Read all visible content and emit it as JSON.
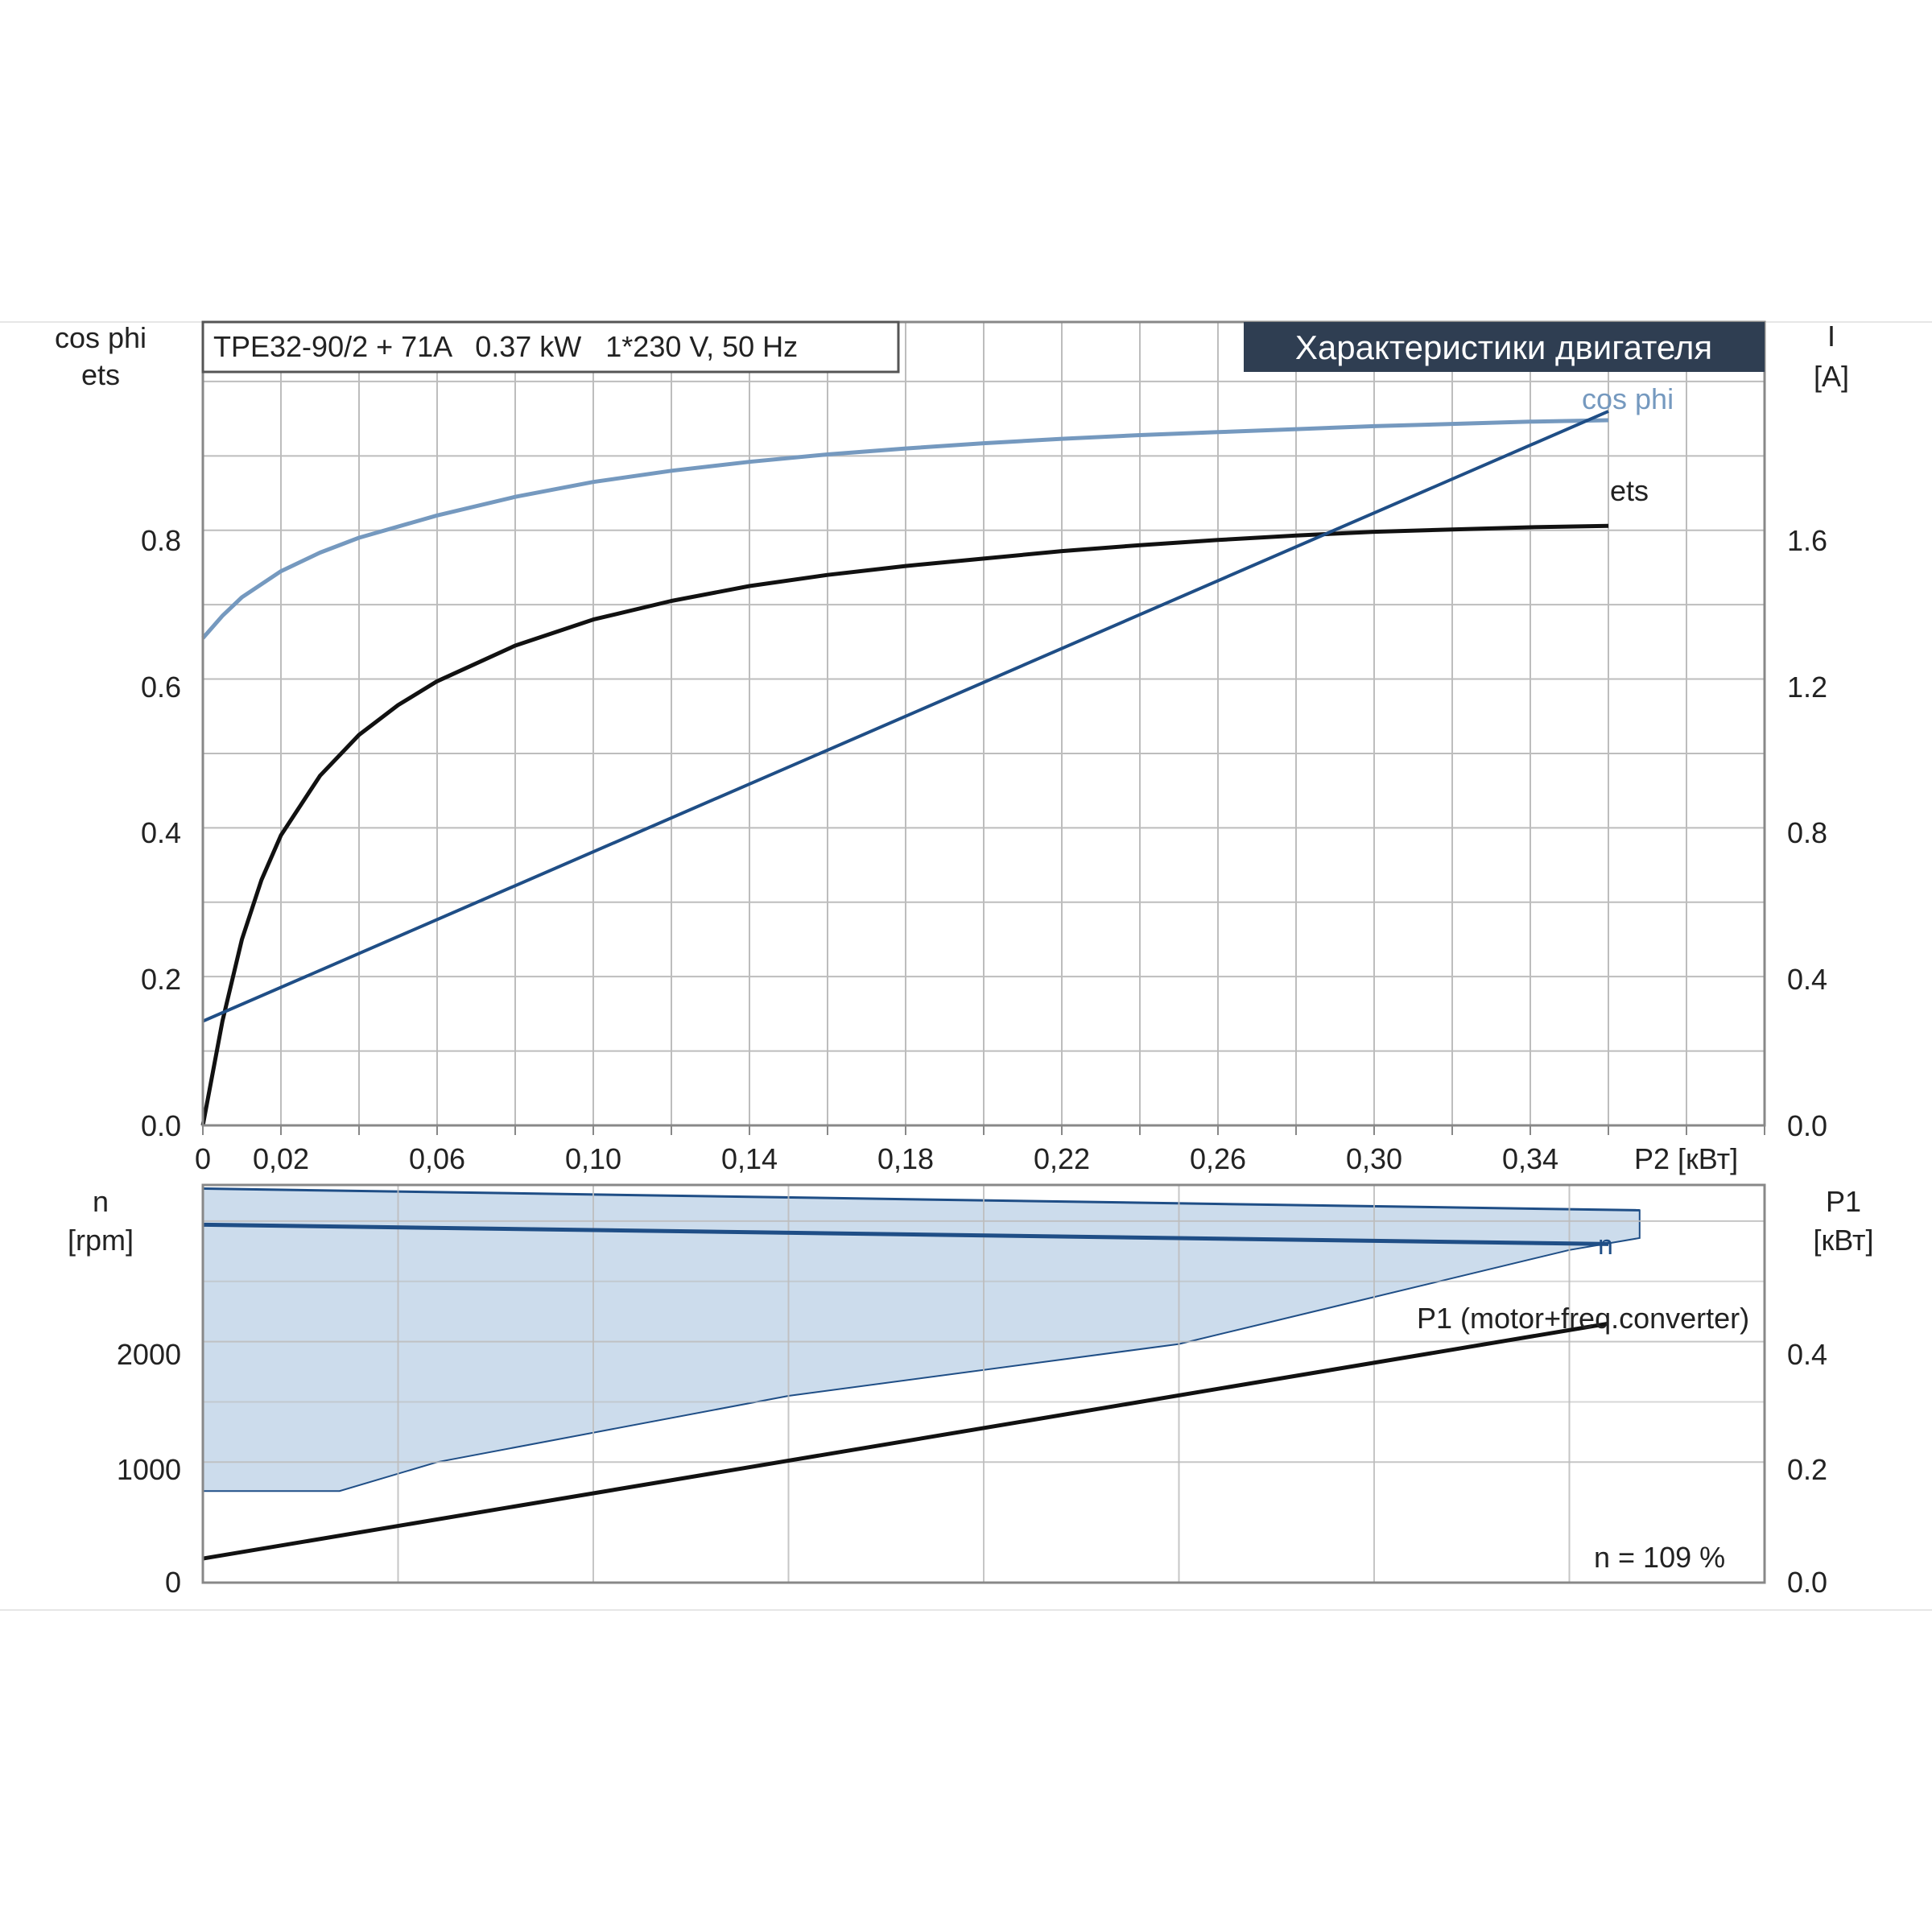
{
  "chart_data": [
    {
      "type": "line",
      "title": "Характеристики двигателя",
      "subtitle": "TPE32-90/2 + 71A   0.37 kW   1*230 V, 50 Hz",
      "xlabel": "P2 [кВт]",
      "ylabel_left": [
        "cos phi",
        "ets"
      ],
      "ylabel_right": [
        "I",
        "[A]"
      ],
      "x_ticks": [
        "0",
        "0,02",
        "0,06",
        "0,10",
        "0,14",
        "0,18",
        "0,22",
        "0,26",
        "0,30",
        "0,34"
      ],
      "y_left_ticks": [
        "0.0",
        "0.2",
        "0.4",
        "0.6",
        "0.8"
      ],
      "y_right_ticks": [
        "0.0",
        "0.4",
        "0.8",
        "1.2",
        "1.6"
      ],
      "xlim": [
        0,
        0.4
      ],
      "ylim_left": [
        0,
        1.08
      ],
      "ylim_right": [
        0,
        2.16
      ],
      "grid": true,
      "colors": {
        "cosphi": "#7599bf",
        "ets": "#111111",
        "current": "#1f4e86"
      },
      "series": [
        {
          "name": "cos phi",
          "axis": "left",
          "x": [
            0,
            0.005,
            0.01,
            0.02,
            0.03,
            0.04,
            0.06,
            0.08,
            0.1,
            0.12,
            0.14,
            0.16,
            0.18,
            0.2,
            0.22,
            0.24,
            0.26,
            0.28,
            0.3,
            0.32,
            0.34,
            0.36
          ],
          "values": [
            0.655,
            0.685,
            0.71,
            0.745,
            0.77,
            0.79,
            0.82,
            0.845,
            0.865,
            0.88,
            0.892,
            0.902,
            0.91,
            0.917,
            0.923,
            0.928,
            0.932,
            0.936,
            0.94,
            0.943,
            0.946,
            0.948
          ]
        },
        {
          "name": "ets",
          "axis": "left",
          "x": [
            0,
            0.005,
            0.01,
            0.015,
            0.02,
            0.03,
            0.04,
            0.05,
            0.06,
            0.08,
            0.1,
            0.12,
            0.14,
            0.16,
            0.18,
            0.2,
            0.22,
            0.24,
            0.26,
            0.28,
            0.3,
            0.32,
            0.34,
            0.36
          ],
          "values": [
            0.0,
            0.14,
            0.25,
            0.33,
            0.39,
            0.47,
            0.525,
            0.565,
            0.597,
            0.645,
            0.68,
            0.705,
            0.725,
            0.74,
            0.752,
            0.762,
            0.772,
            0.78,
            0.787,
            0.793,
            0.798,
            0.801,
            0.804,
            0.806
          ]
        },
        {
          "name": "I",
          "axis": "right",
          "x": [
            0,
            0.36
          ],
          "values": [
            0.28,
            1.92
          ]
        }
      ],
      "annotations": [
        {
          "text": "cos phi",
          "series": "cos phi"
        },
        {
          "text": "ets",
          "series": "ets"
        }
      ]
    },
    {
      "type": "area",
      "ylabel_left": [
        "n",
        "[rpm]"
      ],
      "ylabel_right": [
        "P1",
        "[кВт]"
      ],
      "y_left_ticks": [
        "0",
        "1000",
        "2000"
      ],
      "y_right_ticks": [
        "0.0",
        "0.2",
        "0.4"
      ],
      "xlim": [
        0,
        0.4
      ],
      "ylim_left": [
        0,
        3300
      ],
      "ylim_right": [
        0,
        0.66
      ],
      "grid": true,
      "colors": {
        "band": "#ccdcec",
        "n": "#1f4e86",
        "p1": "#111111"
      },
      "speed_band": {
        "upper": {
          "x": [
            0,
            0.368
          ],
          "values": [
            3270,
            3090
          ]
        },
        "lower": {
          "x": [
            0,
            0.035,
            0.06,
            0.15,
            0.25,
            0.35,
            0.368
          ],
          "values": [
            760,
            760,
            1000,
            1550,
            1980,
            2760,
            2860
          ]
        }
      },
      "series": [
        {
          "name": "n",
          "axis": "left",
          "x": [
            0,
            0.36
          ],
          "values": [
            2970,
            2810
          ]
        },
        {
          "name": "P1 (motor+freq.converter)",
          "axis": "right",
          "x": [
            0,
            0.36
          ],
          "values": [
            0.04,
            0.43
          ]
        }
      ],
      "annotations": [
        {
          "text": "n",
          "series": "n"
        },
        {
          "text": "P1 (motor+freq.converter)",
          "series": "P1 (motor+freq.converter)"
        },
        {
          "text": "n = 109 %"
        }
      ]
    }
  ]
}
